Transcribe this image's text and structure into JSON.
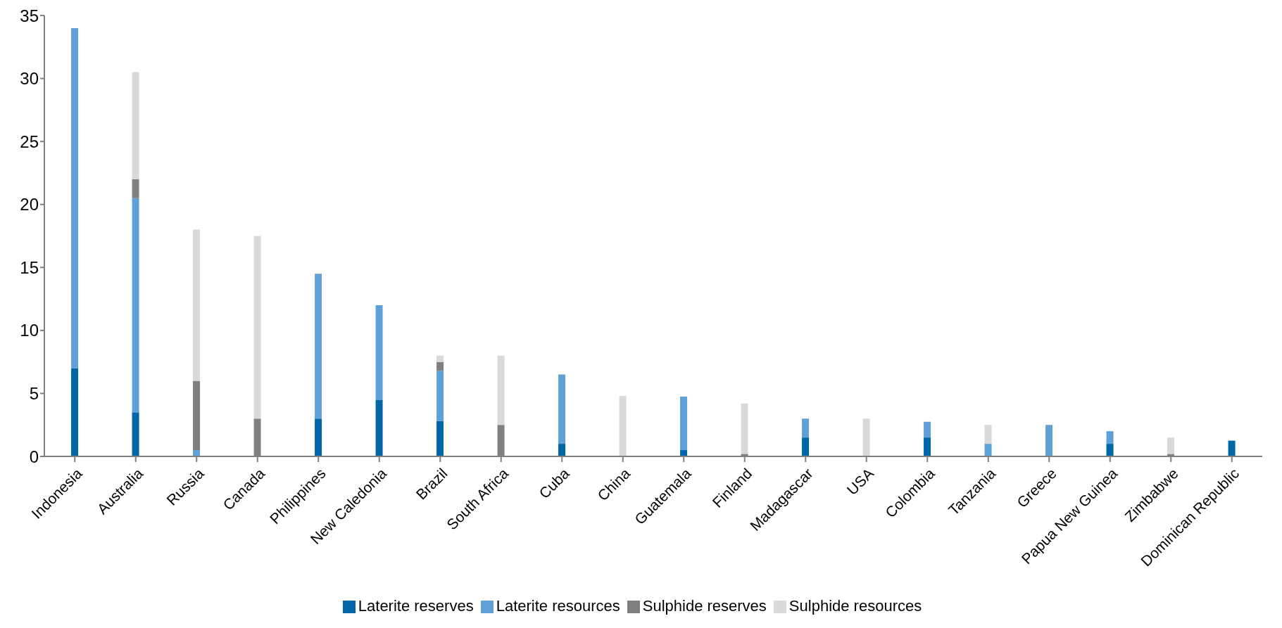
{
  "chart_data": {
    "type": "bar",
    "stacked": true,
    "categories": [
      "Indonesia",
      "Australia",
      "Russia",
      "Canada",
      "Philippines",
      "New Caledonia",
      "Brazil",
      "South Africa",
      "Cuba",
      "China",
      "Guatemala",
      "Finland",
      "Madagascar",
      "USA",
      "Colombia",
      "Tanzania",
      "Greece",
      "Papua New Guinea",
      "Zimbabwe",
      "Dominican Republic"
    ],
    "series": [
      {
        "name": "Laterite reserves",
        "color": "#0066a8",
        "values": [
          7,
          3.5,
          null,
          null,
          3,
          4.5,
          2.8,
          null,
          1,
          null,
          0.5,
          null,
          1.5,
          null,
          1.5,
          null,
          null,
          1,
          null,
          1.25
        ]
      },
      {
        "name": "Laterite resources",
        "color": "#5fa0d6",
        "values": [
          27,
          17,
          0.5,
          null,
          11.5,
          7.5,
          4,
          null,
          5.5,
          null,
          4.25,
          null,
          1.5,
          null,
          1.25,
          1,
          2.5,
          1,
          null,
          null
        ]
      },
      {
        "name": "Sulphide reserves",
        "color": "#808080",
        "values": [
          null,
          1.5,
          5.5,
          3,
          null,
          null,
          0.7,
          2.5,
          null,
          null,
          null,
          0.2,
          null,
          null,
          null,
          null,
          null,
          null,
          0.2,
          null
        ]
      },
      {
        "name": "Sulphide resources",
        "color": "#d9d9d9",
        "values": [
          null,
          8.5,
          12,
          14.5,
          null,
          null,
          0.5,
          5.5,
          null,
          4.8,
          null,
          4,
          null,
          3,
          null,
          1.5,
          null,
          null,
          1.3,
          null
        ]
      }
    ],
    "ylim": [
      0,
      35
    ],
    "yticks": [
      0,
      5,
      10,
      15,
      20,
      25,
      30,
      35
    ],
    "grid": false,
    "legend": "bottom"
  }
}
